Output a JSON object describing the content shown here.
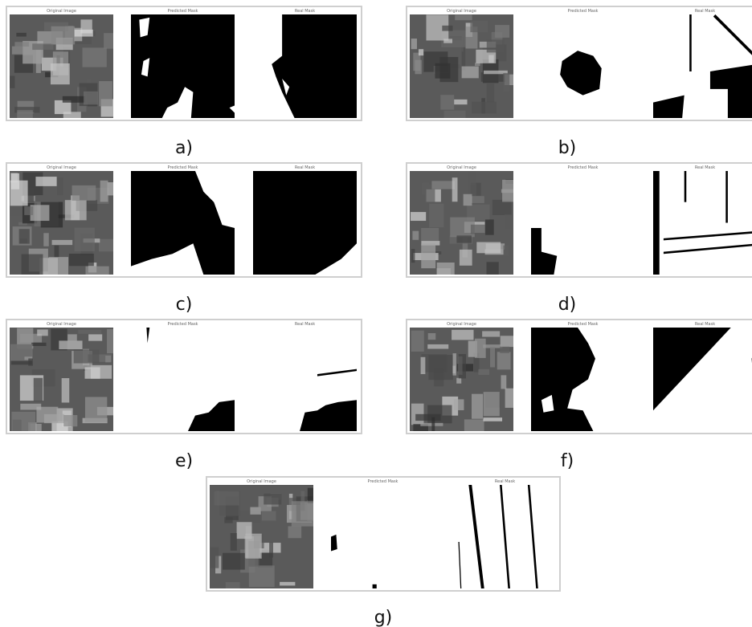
{
  "panels": [
    {
      "label": "a)",
      "titles": [
        "Original Image",
        "Predicted Mask",
        "Real Mask"
      ]
    },
    {
      "label": "b)",
      "titles": [
        "Original Image",
        "Predicted Mask",
        "Real Mask"
      ]
    },
    {
      "label": "c)",
      "titles": [
        "Original Image",
        "Predicted Mask",
        "Real Mask"
      ]
    },
    {
      "label": "d)",
      "titles": [
        "Original Image",
        "Predicted Mask",
        "Real Mask"
      ]
    },
    {
      "label": "e)",
      "titles": [
        "Original Image",
        "Predicted Mask",
        "Real Mask"
      ]
    },
    {
      "label": "f)",
      "titles": [
        "Original Image",
        "Predicted Mask",
        "Real Mask"
      ]
    },
    {
      "label": "g)",
      "titles": [
        "Original Image",
        "Predicted Mask",
        "Real Mask"
      ]
    }
  ]
}
